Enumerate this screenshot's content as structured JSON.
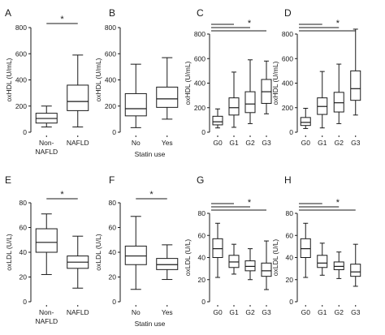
{
  "chart_data": [
    {
      "panel": "A",
      "type": "box",
      "ylabel": "oxHDL (U/mL)",
      "ylim": [
        0,
        800
      ],
      "yticks": [
        0,
        200,
        400,
        600,
        800
      ],
      "xlabel": "",
      "categories": [
        [
          "Non-",
          "NAFLD"
        ],
        [
          "NAFLD"
        ]
      ],
      "boxes": [
        {
          "min": 40,
          "q1": 70,
          "median": 105,
          "q3": 145,
          "max": 200
        },
        {
          "min": 40,
          "q1": 165,
          "median": 235,
          "q3": 360,
          "max": 590
        }
      ],
      "significance": [
        {
          "symbol": "*",
          "groups": [
            0,
            1
          ]
        }
      ]
    },
    {
      "panel": "B",
      "type": "box",
      "ylabel": "oxHDL (U/mL)",
      "ylim": [
        0,
        800
      ],
      "yticks": [
        0,
        200,
        400,
        600,
        800
      ],
      "xlabel": "Statin use",
      "categories": [
        [
          "No"
        ],
        [
          "Yes"
        ]
      ],
      "boxes": [
        {
          "min": 35,
          "q1": 125,
          "median": 180,
          "q3": 295,
          "max": 520
        },
        {
          "min": 100,
          "q1": 190,
          "median": 255,
          "q3": 345,
          "max": 570
        }
      ],
      "significance": []
    },
    {
      "panel": "C",
      "type": "box",
      "ylabel": "oxHDL (U/mL)",
      "ylim": [
        0,
        800
      ],
      "yticks": [
        0,
        200,
        400,
        600,
        800
      ],
      "xlabel": "",
      "categories": [
        [
          "G0"
        ],
        [
          "G1"
        ],
        [
          "G2"
        ],
        [
          "G3"
        ]
      ],
      "boxes": [
        {
          "min": 35,
          "q1": 60,
          "median": 85,
          "q3": 130,
          "max": 190
        },
        {
          "min": 40,
          "q1": 140,
          "median": 200,
          "q3": 280,
          "max": 490
        },
        {
          "min": 70,
          "q1": 160,
          "median": 230,
          "q3": 330,
          "max": 590
        },
        {
          "min": 150,
          "q1": 235,
          "median": 330,
          "q3": 430,
          "max": 580
        }
      ],
      "significance": [
        {
          "symbol": "",
          "groups": [
            0,
            1
          ]
        },
        {
          "symbol": "",
          "groups": [
            0,
            2
          ]
        },
        {
          "symbol": "*",
          "groups": [
            0,
            3
          ]
        }
      ]
    },
    {
      "panel": "D",
      "type": "box",
      "ylabel": "oxHDL (U/mL)",
      "ylim": [
        0,
        800
      ],
      "yticks": [
        0,
        200,
        400,
        600,
        800
      ],
      "xlabel": "",
      "categories": [
        [
          "G0"
        ],
        [
          "G1"
        ],
        [
          "G2"
        ],
        [
          "G3"
        ]
      ],
      "boxes": [
        {
          "min": 30,
          "q1": 55,
          "median": 80,
          "q3": 120,
          "max": 195
        },
        {
          "min": 35,
          "q1": 145,
          "median": 210,
          "q3": 280,
          "max": 495
        },
        {
          "min": 70,
          "q1": 165,
          "median": 240,
          "q3": 325,
          "max": 555
        },
        {
          "min": 140,
          "q1": 260,
          "median": 355,
          "q3": 500,
          "max": 840
        }
      ],
      "significance": [
        {
          "symbol": "",
          "groups": [
            0,
            1
          ]
        },
        {
          "symbol": "",
          "groups": [
            0,
            2
          ]
        },
        {
          "symbol": "*",
          "groups": [
            0,
            3
          ]
        }
      ]
    },
    {
      "panel": "E",
      "type": "box",
      "ylabel": "oxLDL (U/L)",
      "ylim": [
        0,
        80
      ],
      "yticks": [
        0,
        20,
        40,
        60,
        80
      ],
      "xlabel": "",
      "categories": [
        [
          "Non-",
          "NAFLD"
        ],
        [
          "NAFLD"
        ]
      ],
      "boxes": [
        {
          "min": 22,
          "q1": 40,
          "median": 48,
          "q3": 59,
          "max": 71
        },
        {
          "min": 11,
          "q1": 27,
          "median": 32,
          "q3": 37,
          "max": 53
        }
      ],
      "significance": [
        {
          "symbol": "*",
          "groups": [
            0,
            1
          ]
        }
      ]
    },
    {
      "panel": "F",
      "type": "box",
      "ylabel": "oxLDL (U/L)",
      "ylim": [
        0,
        80
      ],
      "yticks": [
        0,
        20,
        40,
        60,
        80
      ],
      "xlabel": "Statin use",
      "categories": [
        [
          "No"
        ],
        [
          "Yes"
        ]
      ],
      "boxes": [
        {
          "min": 10,
          "q1": 30,
          "median": 37,
          "q3": 45,
          "max": 69
        },
        {
          "min": 18,
          "q1": 26,
          "median": 30,
          "q3": 35,
          "max": 46
        }
      ],
      "significance": [
        {
          "symbol": "*",
          "groups": [
            0,
            1
          ]
        }
      ]
    },
    {
      "panel": "G",
      "type": "box",
      "ylabel": "oxLDL (U/L)",
      "ylim": [
        0,
        80
      ],
      "yticks": [
        0,
        20,
        40,
        60,
        80
      ],
      "xlabel": "",
      "categories": [
        [
          "G0"
        ],
        [
          "G1"
        ],
        [
          "G2"
        ],
        [
          "G3"
        ]
      ],
      "boxes": [
        {
          "min": 22,
          "q1": 40,
          "median": 48,
          "q3": 57,
          "max": 71
        },
        {
          "min": 25,
          "q1": 31,
          "median": 36,
          "q3": 42,
          "max": 52
        },
        {
          "min": 20,
          "q1": 28,
          "median": 32,
          "q3": 37,
          "max": 48
        },
        {
          "min": 11,
          "q1": 23,
          "median": 28,
          "q3": 35,
          "max": 55
        }
      ],
      "significance": [
        {
          "symbol": "",
          "groups": [
            0,
            1
          ]
        },
        {
          "symbol": "",
          "groups": [
            0,
            2
          ]
        },
        {
          "symbol": "*",
          "groups": [
            0,
            3
          ]
        }
      ]
    },
    {
      "panel": "H",
      "type": "box",
      "ylabel": "oxLDL (U/L)",
      "ylim": [
        0,
        80
      ],
      "yticks": [
        0,
        20,
        40,
        60,
        80
      ],
      "xlabel": "",
      "categories": [
        [
          "G0"
        ],
        [
          "G1"
        ],
        [
          "G2"
        ],
        [
          "G3"
        ]
      ],
      "boxes": [
        {
          "min": 22,
          "q1": 40,
          "median": 48,
          "q3": 57,
          "max": 71
        },
        {
          "min": 24,
          "q1": 31,
          "median": 35,
          "q3": 42,
          "max": 53
        },
        {
          "min": 21,
          "q1": 29,
          "median": 32,
          "q3": 36,
          "max": 45
        },
        {
          "min": 14,
          "q1": 23,
          "median": 27,
          "q3": 34,
          "max": 52
        }
      ],
      "significance": [
        {
          "symbol": "",
          "groups": [
            0,
            1
          ]
        },
        {
          "symbol": "",
          "groups": [
            0,
            2
          ]
        },
        {
          "symbol": "*",
          "groups": [
            0,
            3
          ]
        }
      ]
    }
  ]
}
